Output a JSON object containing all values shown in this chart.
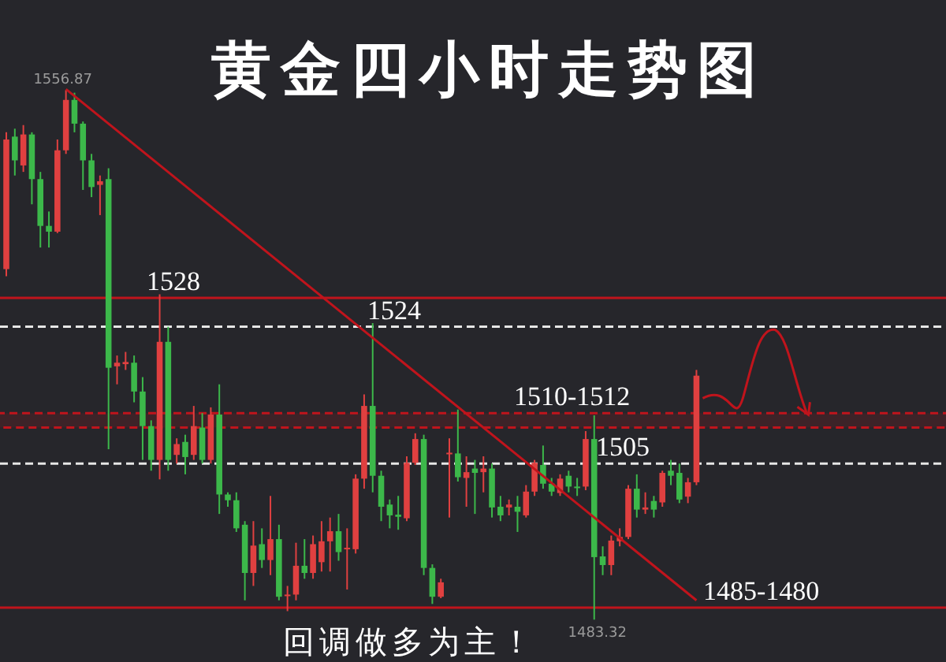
{
  "chart_data": {
    "type": "candlestick",
    "title": "黄金四小时走势图",
    "categories": [
      null,
      null,
      null,
      null,
      null,
      null,
      null,
      null,
      null,
      null,
      null,
      null,
      null,
      null,
      null,
      null,
      null,
      null,
      null,
      null,
      null,
      null,
      null,
      null,
      null,
      null,
      null,
      null,
      null,
      null,
      null,
      null,
      null,
      null,
      null,
      null,
      null,
      null,
      null,
      null,
      null,
      null,
      null,
      null,
      null,
      null,
      null,
      null,
      null,
      null,
      null,
      null,
      null,
      null,
      null,
      null,
      null,
      null,
      null,
      null,
      null,
      null,
      null,
      null,
      null,
      null,
      null,
      null,
      null,
      null,
      null,
      null,
      null,
      null,
      null,
      null,
      null,
      null,
      null,
      null,
      null,
      null
    ],
    "ohlc": [
      [
        1532,
        1551,
        1531,
        1550
      ],
      [
        1550.4,
        1551.5,
        1545,
        1547.1
      ],
      [
        1546.4,
        1552,
        1545.5,
        1550.7
      ],
      [
        1550.7,
        1551,
        1541,
        1544.5
      ],
      [
        1544.5,
        1545.5,
        1535,
        1538
      ],
      [
        1538,
        1540,
        1535,
        1537.2
      ],
      [
        1537.2,
        1550,
        1537,
        1548.5
      ],
      [
        1548.5,
        1556.87,
        1548,
        1555.5
      ],
      [
        1555.5,
        1556.5,
        1551,
        1552.2
      ],
      [
        1552.2,
        1552.5,
        1543,
        1547.1
      ],
      [
        1547.1,
        1548,
        1542,
        1543.4
      ],
      [
        1543.7,
        1545,
        1539.5,
        1544.2
      ],
      [
        1544.5,
        1546,
        1507,
        1518.3
      ],
      [
        1518.5,
        1520,
        1516,
        1519
      ],
      [
        1518.8,
        1520.5,
        1518,
        1519.1
      ],
      [
        1519,
        1520,
        1513.5,
        1515
      ],
      [
        1515,
        1517,
        1505.5,
        1510.2
      ],
      [
        1510.2,
        1511,
        1504,
        1505.5
      ],
      [
        1505.5,
        1528.5,
        1502.8,
        1521.9
      ],
      [
        1521.9,
        1524,
        1504,
        1505.5
      ],
      [
        1506.2,
        1508.5,
        1505,
        1507.7
      ],
      [
        1508,
        1509,
        1503.5,
        1505.9
      ],
      [
        1506.2,
        1513,
        1505.5,
        1510.2
      ],
      [
        1510,
        1512,
        1505,
        1505.5
      ],
      [
        1505.5,
        1512.8,
        1505,
        1511.8
      ],
      [
        1511.8,
        1516,
        1498,
        1500.7
      ],
      [
        1500.7,
        1501,
        1499,
        1499.9
      ],
      [
        1499.9,
        1501,
        1495.5,
        1496
      ],
      [
        1496.5,
        1497,
        1486,
        1489.8
      ],
      [
        1489.8,
        1497,
        1488,
        1493.6
      ],
      [
        1493.8,
        1496,
        1490.5,
        1491.6
      ],
      [
        1491.6,
        1500.5,
        1489.5,
        1494.5
      ],
      [
        1494.5,
        1496.5,
        1486,
        1486.5
      ],
      [
        1486.6,
        1488,
        1484.5,
        1486.8
      ],
      [
        1486.8,
        1494,
        1486,
        1490.8
      ],
      [
        1490.8,
        1494.5,
        1489,
        1489.8
      ],
      [
        1489.8,
        1495,
        1489,
        1493.8
      ],
      [
        1491.3,
        1497,
        1490,
        1494.2
      ],
      [
        1494.2,
        1497.5,
        1490,
        1495.6
      ],
      [
        1495.6,
        1498,
        1491.5,
        1492.7
      ],
      [
        1493.1,
        1496,
        1487.5,
        1493.3
      ],
      [
        1493.1,
        1503.5,
        1492.5,
        1502.9
      ],
      [
        1502.9,
        1514.6,
        1501.5,
        1513
      ],
      [
        1513,
        1524.5,
        1501,
        1503.3
      ],
      [
        1503.3,
        1504,
        1497,
        1499
      ],
      [
        1499.3,
        1500,
        1496,
        1497.8
      ],
      [
        1497.9,
        1500.5,
        1495.8,
        1497.6
      ],
      [
        1497.4,
        1506,
        1497,
        1505.1
      ],
      [
        1505.1,
        1509.2,
        1504.8,
        1508.4
      ],
      [
        1508.4,
        1509,
        1489.5,
        1490.5
      ],
      [
        1490.5,
        1491,
        1485.5,
        1486.5
      ],
      [
        1486.5,
        1489,
        1486.3,
        1488.5
      ],
      [
        1506.3,
        1508.5,
        1497.5,
        1506.5
      ],
      [
        1506.4,
        1512.5,
        1502.5,
        1503.1
      ],
      [
        1503,
        1506,
        1499,
        1503.8
      ],
      [
        1504.3,
        1505.5,
        1498,
        1503.7
      ],
      [
        1503.8,
        1506,
        1501,
        1504.3
      ],
      [
        1504.3,
        1505,
        1497.5,
        1498.9
      ],
      [
        1499,
        1500.5,
        1497,
        1497.8
      ],
      [
        1498.9,
        1500,
        1497.8,
        1499.3
      ],
      [
        1499,
        1500.5,
        1495.5,
        1498.3
      ],
      [
        1497.8,
        1502,
        1497.5,
        1501.1
      ],
      [
        1501.1,
        1505.5,
        1500.5,
        1505.1
      ],
      [
        1504.8,
        1507.5,
        1501.5,
        1502.2
      ],
      [
        1502.2,
        1503,
        1500.5,
        1501.1
      ],
      [
        1500.9,
        1503.5,
        1500.5,
        1502.9
      ],
      [
        1503.3,
        1504,
        1501,
        1501.8
      ],
      [
        1501.8,
        1503,
        1500.5,
        1501.6
      ],
      [
        1501.8,
        1509.5,
        1501.3,
        1508.4
      ],
      [
        1508.4,
        1511.7,
        1483.32,
        1492
      ],
      [
        1492.1,
        1493.5,
        1489.5,
        1490.9
      ],
      [
        1490.9,
        1495,
        1489.5,
        1494.3
      ],
      [
        1494.2,
        1496,
        1493.5,
        1494.8
      ],
      [
        1494.8,
        1502,
        1494.5,
        1501.5
      ],
      [
        1501.5,
        1503.5,
        1497.5,
        1498.6
      ],
      [
        1498.6,
        1501,
        1498,
        1498.9
      ],
      [
        1499.8,
        1500.5,
        1497.5,
        1498.6
      ],
      [
        1499.6,
        1504,
        1499,
        1503.7
      ],
      [
        1504,
        1505.5,
        1502,
        1503.3
      ],
      [
        1503.7,
        1505,
        1499.5,
        1500
      ],
      [
        1500.4,
        1503,
        1499.5,
        1502.4
      ],
      [
        1502.4,
        1518,
        1502,
        1517.2
      ]
    ],
    "series": [
      {
        "type": "line",
        "values": [
          null,
          null,
          null,
          null,
          null,
          null,
          null,
          1557,
          null,
          null,
          null,
          null,
          null,
          null,
          null,
          null,
          null,
          null,
          null,
          null,
          null,
          null,
          null,
          null,
          null,
          null,
          null,
          null,
          null,
          null,
          null,
          null,
          null,
          null,
          null,
          null,
          null,
          null,
          null,
          null,
          null,
          null,
          null,
          null,
          null,
          null,
          null,
          null,
          null,
          null,
          null,
          null,
          null,
          null,
          null,
          null,
          null,
          null,
          null,
          null,
          null,
          null,
          null,
          null,
          null,
          null,
          null,
          null,
          null,
          null,
          null,
          null,
          null,
          null,
          null,
          null,
          null,
          null,
          null,
          null,
          null,
          1486
        ],
        "color": "#c0141c"
      }
    ],
    "colors": [
      "#e04040",
      "#3cb84a",
      "#e04040",
      "#3cb84a",
      "#3cb84a",
      "#3cb84a",
      "#e04040",
      "#e04040",
      "#3cb84a",
      "#3cb84a",
      "#3cb84a",
      "#e04040",
      "#3cb84a",
      "#e04040",
      "#e04040",
      "#3cb84a",
      "#3cb84a",
      "#3cb84a",
      "#e04040",
      "#3cb84a",
      "#e04040",
      "#3cb84a",
      "#e04040",
      "#3cb84a",
      "#e04040",
      "#3cb84a",
      "#3cb84a",
      "#3cb84a",
      "#3cb84a",
      "#e04040",
      "#3cb84a",
      "#e04040",
      "#3cb84a",
      "#e04040",
      "#e04040",
      "#3cb84a",
      "#e04040",
      "#e04040",
      "#e04040",
      "#3cb84a",
      "#e04040",
      "#e04040",
      "#e04040",
      "#3cb84a",
      "#3cb84a",
      "#3cb84a",
      "#3cb84a",
      "#e04040",
      "#e04040",
      "#3cb84a",
      "#3cb84a",
      "#e04040",
      "#e04040",
      "#3cb84a",
      "#e04040",
      "#3cb84a",
      "#e04040",
      "#3cb84a",
      "#3cb84a",
      "#e04040",
      "#3cb84a",
      "#e04040",
      "#e04040",
      "#3cb84a",
      "#3cb84a",
      "#e04040",
      "#3cb84a",
      "#3cb84a",
      "#e04040",
      "#3cb84a",
      "#3cb84a",
      "#e04040",
      "#e04040",
      "#e04040",
      "#3cb84a",
      "#e04040",
      "#3cb84a",
      "#e04040",
      "#3cb84a",
      "#3cb84a",
      "#e04040",
      "#e04040"
    ],
    "ref_lines": [
      {
        "axis": "y",
        "value": 1528,
        "label": "1528",
        "color": "#c0141c",
        "line_style": "solid"
      },
      {
        "axis": "y",
        "value": 1524,
        "label": "1524",
        "color": "#e6e6e6",
        "line_style": "dashed"
      },
      {
        "axis": "y",
        "value": 1505,
        "label": "1505",
        "color": "#e6e6e6",
        "line_style": "dashed"
      },
      {
        "axis": "y",
        "value": 1485,
        "label": "1485-1480",
        "color": "#c0141c",
        "line_style": "solid"
      }
    ],
    "annotations": [
      "1556.87",
      "1483.32",
      "回调做多为主！"
    ],
    "bands": [
      {
        "axis": "y",
        "from": 1510,
        "to": 1512,
        "label": "1510-1512",
        "color": "#c0141c"
      }
    ],
    "grid": false
  }
}
